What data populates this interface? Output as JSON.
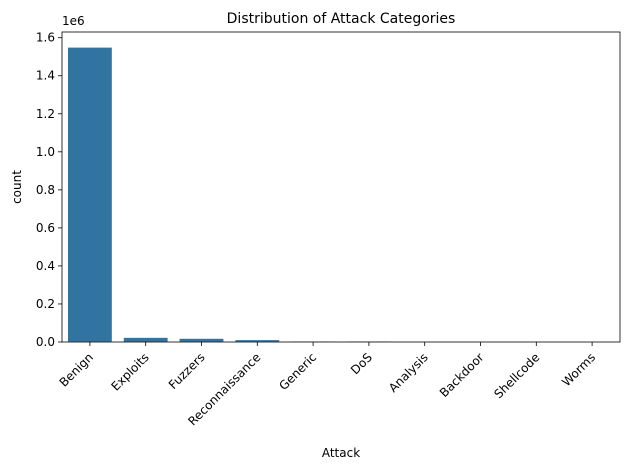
{
  "chart_data": {
    "type": "bar",
    "title": "Distribution of Attack Categories",
    "xlabel": "Attack",
    "ylabel": "count",
    "offset_label": "1e6",
    "categories": [
      "Benign",
      "Exploits",
      "Fuzzers",
      "Reconnaissance",
      "Generic",
      "DoS",
      "Analysis",
      "Backdoor",
      "Shellcode",
      "Worms"
    ],
    "values": [
      1550000,
      24000,
      19000,
      12000,
      5000,
      5000,
      2000,
      1800,
      1400,
      150
    ],
    "ylim": [
      0,
      1630000
    ],
    "yticks": [
      0,
      200000,
      400000,
      600000,
      800000,
      1000000,
      1200000,
      1400000,
      1600000
    ],
    "ytick_labels": [
      "0.0",
      "0.2",
      "0.4",
      "0.6",
      "0.8",
      "1.0",
      "1.2",
      "1.4",
      "1.6"
    ],
    "tick_rotation_deg": -45,
    "grid": false,
    "legend": "none",
    "bar_color": "#3274a1",
    "bar_edge_color": "#ffffff"
  }
}
